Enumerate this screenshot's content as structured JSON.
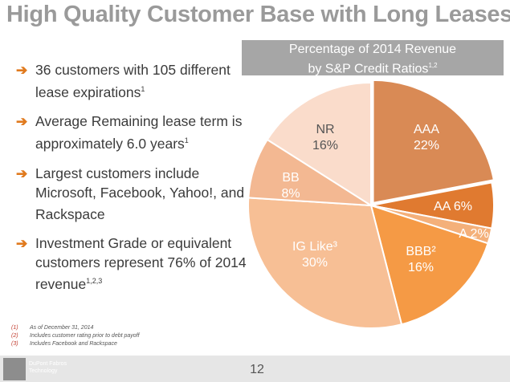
{
  "title": "High Quality Customer Base with Long Leases",
  "chart_header": {
    "line1": "Percentage of 2014 Revenue",
    "line2": "by S&P Credit Ratios",
    "sup": "1,2"
  },
  "bullets": [
    {
      "text": "36 customers with 105 different lease expirations",
      "sup": "1"
    },
    {
      "text": "Average Remaining lease term is approximately 6.0 years",
      "sup": "1"
    },
    {
      "text": "Largest customers include Microsoft, Facebook, Yahoo!, and Rackspace",
      "sup": ""
    },
    {
      "text": "Investment Grade or equivalent customers represent 76% of 2014 revenue",
      "sup": "1,2,3"
    }
  ],
  "arrow_glyph": "➔",
  "footnotes": [
    {
      "num": "(1)",
      "text": "As of December 31, 2014"
    },
    {
      "num": "(2)",
      "text": "Includes customer rating prior to debt payoff"
    },
    {
      "num": "(3)",
      "text": "Includes Facebook and Rackspace"
    }
  ],
  "footer": {
    "logo_line1": "DuPont Fabros",
    "logo_line2": "Technology",
    "page_number": "12"
  },
  "colors": {
    "title": "#9a9a9a",
    "arrow": "#e07a1e",
    "header_bg": "#a6a6a6"
  },
  "chart_data": {
    "type": "pie",
    "title": "Percentage of 2014 Revenue by S&P Credit Ratios",
    "unit": "%",
    "slices": [
      {
        "name": "AAA",
        "value": 22,
        "label_name": "AAA",
        "label_value": "22%",
        "color": "#d98a55"
      },
      {
        "name": "AA",
        "value": 6,
        "label_name": "AA 6%",
        "label_value": "",
        "color": "#e07a30"
      },
      {
        "name": "A",
        "value": 2,
        "label_name": "A 2%",
        "label_value": "",
        "color": "#f4b07a"
      },
      {
        "name": "BBB",
        "value": 16,
        "label_name": "BBB²",
        "label_value": "16%",
        "color": "#f59a45"
      },
      {
        "name": "IG Like",
        "value": 30,
        "label_name": "IG Like³",
        "label_value": "30%",
        "color": "#f7bf95"
      },
      {
        "name": "BB",
        "value": 8,
        "label_name": "BB",
        "label_value": "8%",
        "color": "#f3b892"
      },
      {
        "name": "NR",
        "value": 16,
        "label_name": "NR",
        "label_value": "16%",
        "color": "#fadccb"
      }
    ]
  }
}
